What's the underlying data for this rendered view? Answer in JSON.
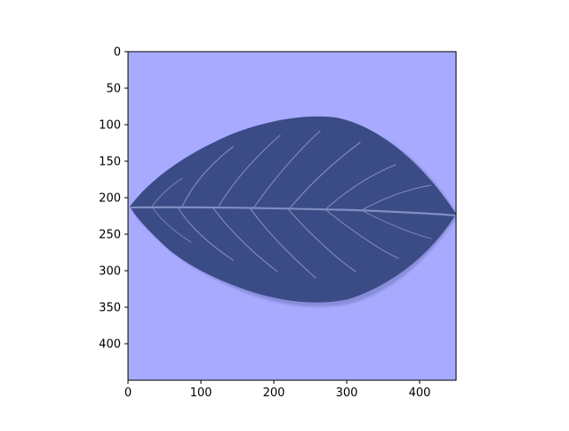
{
  "image": {
    "subject": "leaf",
    "background_color": "#a8aaff",
    "leaf_color": "#3a4b85",
    "vein_color": "#7f8fc2"
  },
  "axes": {
    "x_ticks": [
      "0",
      "100",
      "200",
      "300",
      "400"
    ],
    "y_ticks": [
      "0",
      "50",
      "100",
      "150",
      "200",
      "250",
      "300",
      "350",
      "400"
    ],
    "x_range": [
      0,
      450
    ],
    "y_range": [
      450,
      0
    ]
  }
}
